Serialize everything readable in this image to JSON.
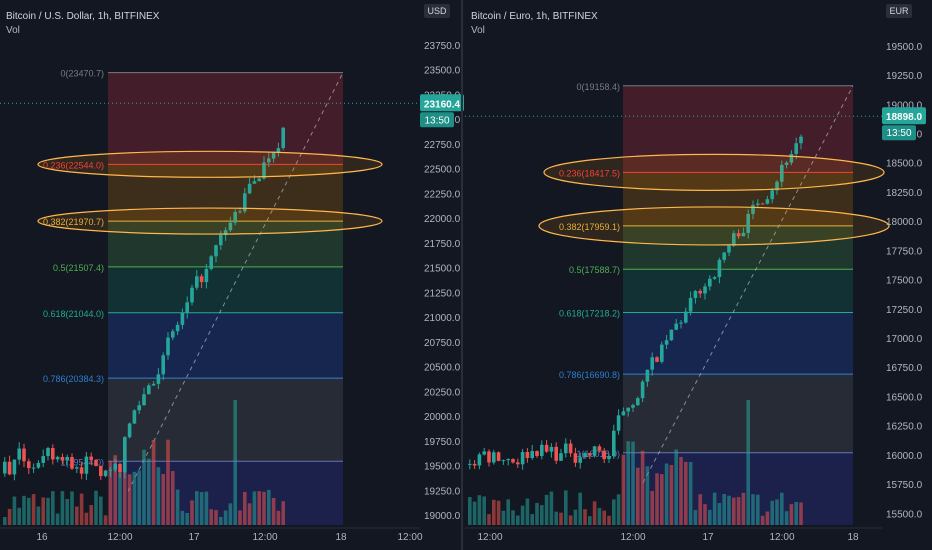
{
  "chart_data": [
    {
      "type": "candlestick",
      "title": "Bitcoin / U.S. Dollar, 1h, BITFINEX",
      "indicator": "Vol",
      "currency": "USD",
      "last_price": "23160.4",
      "countdown": "13:50",
      "ylim": [
        18900,
        23800
      ],
      "y_ticks": [
        "19000.0",
        "19250.0",
        "19500.0",
        "19750.0",
        "20000.0",
        "20250.0",
        "20500.0",
        "20750.0",
        "21000.0",
        "21250.0",
        "21500.0",
        "21750.0",
        "22000.0",
        "22250.0",
        "22500.0",
        "22750.0",
        "23000.0",
        "23250.0",
        "23500.0",
        "23750.0"
      ],
      "x_ticks": [
        "16",
        "12:00",
        "17",
        "12:00",
        "18",
        "12:00"
      ],
      "fib_levels": [
        {
          "label": "0(23470.7)",
          "price": 23470.7,
          "line": "#787b86",
          "fill": "rgba(242,54,69,0.22)"
        },
        {
          "label": "0.236(22544.0)",
          "price": 22544.0,
          "line": "#f23645",
          "fill": "rgba(255,152,0,0.18)"
        },
        {
          "label": "0.382(21970.7)",
          "price": 21970.7,
          "line": "#e3b341",
          "fill": "rgba(76,175,80,0.22)"
        },
        {
          "label": "0.5(21507.4)",
          "price": 21507.4,
          "line": "#4caf50",
          "fill": "rgba(8,153,129,0.2)"
        },
        {
          "label": "0.618(21044.0)",
          "price": 21044.0,
          "line": "#22ab94",
          "fill": "rgba(41,98,255,0.2)"
        },
        {
          "label": "0.786(20384.3)",
          "price": 20384.3,
          "line": "#2f7fd0",
          "fill": "rgba(120,123,134,0.2)"
        },
        {
          "label": "1(19544.0)",
          "price": 19544.0,
          "line": "#6674b8",
          "fill": "rgba(48,56,160,0.32)"
        }
      ],
      "highlighted_levels": [
        "0.236(22544.0)",
        "0.382(21970.7)"
      ],
      "colors": {
        "up": "#26a69a",
        "down": "#ef5350",
        "last_price_bg": "#26a69a"
      }
    },
    {
      "type": "candlestick",
      "title": "Bitcoin / Euro, 1h, BITFINEX",
      "indicator": "Vol",
      "currency": "EUR",
      "last_price": "18898.0",
      "countdown": "13:50",
      "ylim": [
        15400,
        19550
      ],
      "y_ticks": [
        "15500.0",
        "15750.0",
        "16000.0",
        "16250.0",
        "16500.0",
        "16750.0",
        "17000.0",
        "17250.0",
        "17500.0",
        "17750.0",
        "18000.0",
        "18250.0",
        "18500.0",
        "18750.0",
        "19000.0",
        "19250.0",
        "19500.0"
      ],
      "x_ticks": [
        "12:00",
        "12:00",
        "17",
        "12:00",
        "18"
      ],
      "fib_levels": [
        {
          "label": "0(19158.4)",
          "price": 19158.4,
          "line": "#787b86",
          "fill": "rgba(242,54,69,0.22)"
        },
        {
          "label": "0.236(18417.5)",
          "price": 18417.5,
          "line": "#f23645",
          "fill": "rgba(255,152,0,0.18)"
        },
        {
          "label": "0.382(17959.1)",
          "price": 17959.1,
          "line": "#e3b341",
          "fill": "rgba(76,175,80,0.22)"
        },
        {
          "label": "0.5(17588.7)",
          "price": 17588.7,
          "line": "#4caf50",
          "fill": "rgba(8,153,129,0.2)"
        },
        {
          "label": "0.618(17218.2)",
          "price": 17218.2,
          "line": "#22ab94",
          "fill": "rgba(41,98,255,0.2)"
        },
        {
          "label": "0.786(16690.8)",
          "price": 16690.8,
          "line": "#2f7fd0",
          "fill": "rgba(120,123,134,0.2)"
        },
        {
          "label": "1(16018.0)",
          "price": 16018.0,
          "line": "#6674b8",
          "fill": "rgba(48,56,160,0.32)"
        }
      ],
      "highlighted_levels": [
        "0.236(18417.5)",
        "0.382(17959.1)"
      ],
      "colors": {
        "up": "#26a69a",
        "down": "#ef5350",
        "last_price_bg": "#26a69a"
      }
    }
  ]
}
